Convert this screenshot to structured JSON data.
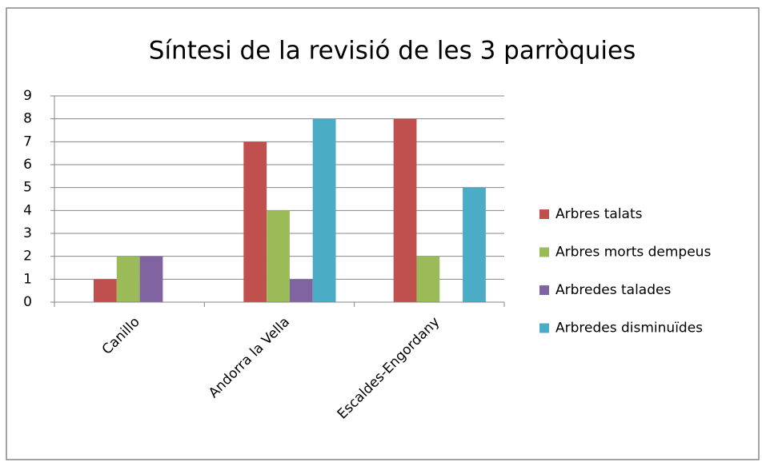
{
  "chart_data": {
    "type": "bar",
    "title": "Síntesi de la revisió de les 3 parròquies",
    "categories": [
      "Canillo",
      "Andorra la Vella",
      "Escaldes-Engordany"
    ],
    "series": [
      {
        "name": "Arbres talats",
        "color": "#c0504d",
        "values": [
          1,
          7,
          8
        ]
      },
      {
        "name": "Arbres morts dempeus",
        "color": "#9bbb59",
        "values": [
          2,
          4,
          2
        ]
      },
      {
        "name": "Arbredes talades",
        "color": "#8064a2",
        "values": [
          2,
          1,
          0
        ]
      },
      {
        "name": "Arbredes disminuïdes",
        "color": "#4bacc6",
        "values": [
          0,
          8,
          5
        ]
      }
    ],
    "ylim": [
      0,
      9
    ],
    "yticks": [
      0,
      1,
      2,
      3,
      4,
      5,
      6,
      7,
      8,
      9
    ],
    "grid": true,
    "legend": "right"
  }
}
